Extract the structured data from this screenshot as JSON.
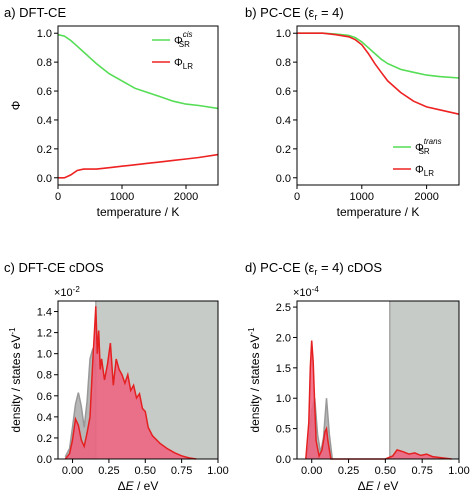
{
  "chart_data": [
    {
      "id": "a",
      "type": "line",
      "panel_label": "a)",
      "title": "DFT-CE",
      "xlabel": "temperature / K",
      "ylabel": "Φ",
      "xlim": [
        0,
        2500
      ],
      "ylim": [
        -0.05,
        1.05
      ],
      "xticks": [
        "0",
        "1000",
        "2000"
      ],
      "yticks": [
        "0.0",
        "0.2",
        "0.4",
        "0.6",
        "0.8",
        "1.0"
      ],
      "legend_position": "top-right",
      "series": [
        {
          "name": "Φ_SR^cis",
          "legend_main": "Φ",
          "legend_sub": "SR",
          "legend_sup": "cis",
          "color": "#55dd55",
          "x": [
            0,
            100,
            200,
            300,
            400,
            500,
            600,
            800,
            1000,
            1200,
            1400,
            1600,
            1800,
            2000,
            2200,
            2500
          ],
          "y": [
            0.99,
            0.98,
            0.95,
            0.91,
            0.87,
            0.83,
            0.79,
            0.72,
            0.67,
            0.62,
            0.59,
            0.56,
            0.53,
            0.51,
            0.5,
            0.48
          ]
        },
        {
          "name": "Φ_LR",
          "legend_main": "Φ",
          "legend_sub": "LR",
          "legend_sup": "",
          "color": "#ee2222",
          "x": [
            0,
            100,
            200,
            300,
            400,
            500,
            600,
            800,
            1000,
            1200,
            1400,
            1600,
            1800,
            2000,
            2200,
            2500
          ],
          "y": [
            0.0,
            0.0,
            0.02,
            0.05,
            0.06,
            0.06,
            0.06,
            0.07,
            0.08,
            0.09,
            0.1,
            0.11,
            0.12,
            0.13,
            0.14,
            0.16
          ]
        }
      ]
    },
    {
      "id": "b",
      "type": "line",
      "panel_label": "b)",
      "title": "PC-CE  (ε",
      "title_sub": "r",
      "title_tail": " = 4)",
      "xlabel": "temperature / K",
      "ylabel": "",
      "xlim": [
        0,
        2500
      ],
      "ylim": [
        -0.05,
        1.05
      ],
      "xticks": [
        "0",
        "1000",
        "2000"
      ],
      "yticks": [
        "0.0",
        "0.2",
        "0.4",
        "0.6",
        "0.8",
        "1.0"
      ],
      "legend_position": "bottom-right",
      "series": [
        {
          "name": "Φ_SR^trans",
          "legend_main": "Φ",
          "legend_sub": "SR",
          "legend_sup": "trans",
          "color": "#55dd55",
          "x": [
            0,
            200,
            400,
            600,
            800,
            900,
            1000,
            1100,
            1200,
            1300,
            1400,
            1600,
            1800,
            2000,
            2200,
            2500
          ],
          "y": [
            1.0,
            1.0,
            1.0,
            0.995,
            0.985,
            0.97,
            0.94,
            0.9,
            0.86,
            0.82,
            0.79,
            0.75,
            0.73,
            0.71,
            0.7,
            0.69
          ]
        },
        {
          "name": "Φ_LR",
          "legend_main": "Φ",
          "legend_sub": "LR",
          "legend_sup": "",
          "color": "#ee2222",
          "x": [
            0,
            200,
            400,
            600,
            800,
            900,
            1000,
            1100,
            1200,
            1300,
            1400,
            1600,
            1800,
            2000,
            2200,
            2500
          ],
          "y": [
            1.0,
            1.0,
            1.0,
            0.99,
            0.975,
            0.955,
            0.92,
            0.86,
            0.79,
            0.73,
            0.67,
            0.59,
            0.53,
            0.49,
            0.47,
            0.44
          ]
        }
      ]
    },
    {
      "id": "c",
      "type": "area",
      "panel_label": "c)",
      "title": "DFT-CE cDOS",
      "xlabel": "ΔE / eV",
      "xlabel_italic": "E",
      "ylabel": "density / states eV",
      "ylabel_sup": "-1",
      "y_multiplier": "×10",
      "y_multiplier_exp": "-2",
      "xlim": [
        -0.1,
        1.0
      ],
      "ylim": [
        0,
        1.5
      ],
      "xticks": [
        "0.00",
        "0.25",
        "0.50",
        "0.75",
        "1.00"
      ],
      "yticks": [
        "0.0",
        "0.2",
        "0.4",
        "0.6",
        "0.8",
        "1.0",
        "1.2",
        "1.4"
      ],
      "shaded_region_start": 0.16,
      "shaded_color": "#c7cbc7",
      "series": [
        {
          "name": "",
          "color": "#999999",
          "fill": "#aaaaaa",
          "x": [
            -0.05,
            -0.02,
            0.0,
            0.02,
            0.04,
            0.06,
            0.08,
            0.1,
            0.12,
            0.14,
            0.16
          ],
          "y": [
            0.02,
            0.1,
            0.3,
            0.52,
            0.63,
            0.5,
            0.3,
            0.55,
            0.95,
            1.05,
            0.8
          ]
        },
        {
          "name": "",
          "color": "#e52020",
          "fill": "#f0607f",
          "x": [
            -0.05,
            -0.02,
            0.0,
            0.02,
            0.04,
            0.06,
            0.08,
            0.1,
            0.12,
            0.14,
            0.15,
            0.16,
            0.17,
            0.18,
            0.19,
            0.2,
            0.22,
            0.24,
            0.26,
            0.28,
            0.3,
            0.32,
            0.34,
            0.36,
            0.38,
            0.4,
            0.42,
            0.44,
            0.46,
            0.48,
            0.5,
            0.52,
            0.55,
            0.6,
            0.65,
            0.7,
            0.75,
            0.8,
            0.85
          ],
          "y": [
            0.0,
            0.05,
            0.18,
            0.38,
            0.32,
            0.18,
            0.12,
            0.25,
            0.4,
            0.95,
            1.2,
            1.45,
            1.0,
            1.22,
            0.85,
            0.95,
            0.75,
            0.9,
            1.1,
            0.7,
            0.95,
            0.85,
            0.8,
            0.72,
            0.8,
            0.65,
            0.7,
            0.58,
            0.62,
            0.48,
            0.45,
            0.3,
            0.22,
            0.15,
            0.1,
            0.06,
            0.03,
            0.01,
            0.0
          ]
        }
      ]
    },
    {
      "id": "d",
      "type": "area",
      "panel_label": "d)",
      "title": "PC-CE  (ε",
      "title_sub": "r",
      "title_tail": " = 4) cDOS",
      "xlabel": "ΔE / eV",
      "xlabel_italic": "E",
      "ylabel": "density / states eV",
      "ylabel_sup": "-1",
      "y_multiplier": "×10",
      "y_multiplier_exp": "-4",
      "xlim": [
        -0.1,
        1.0
      ],
      "ylim": [
        0,
        2.6
      ],
      "xticks": [
        "0.00",
        "0.25",
        "0.50",
        "0.75",
        "1.00"
      ],
      "yticks": [
        "0.0",
        "0.5",
        "1.0",
        "1.5",
        "2.0",
        "2.5"
      ],
      "shaded_region_start": 0.53,
      "shaded_color": "#c7cbc7",
      "series": [
        {
          "name": "",
          "color": "#999999",
          "fill": "#aaaaaa",
          "x": [
            -0.04,
            -0.02,
            0.0,
            0.02,
            0.04,
            0.06,
            0.08,
            0.1,
            0.12,
            0.14
          ],
          "y": [
            0.0,
            0.2,
            0.8,
            1.0,
            0.4,
            0.1,
            0.35,
            1.0,
            0.4,
            0.0
          ]
        },
        {
          "name": "",
          "color": "#e52020",
          "fill": "#f0607f",
          "x": [
            -0.04,
            -0.02,
            -0.01,
            0.0,
            0.01,
            0.02,
            0.03,
            0.05,
            0.07,
            0.09,
            0.1,
            0.11,
            0.13,
            0.5,
            0.55,
            0.58,
            0.62,
            0.66,
            0.7,
            0.74,
            0.78,
            0.82,
            0.88,
            0.95
          ],
          "y": [
            0.0,
            0.6,
            1.5,
            1.95,
            1.6,
            0.9,
            0.3,
            0.05,
            0.15,
            0.45,
            0.5,
            0.3,
            0.0,
            0.0,
            0.05,
            0.15,
            0.12,
            0.08,
            0.1,
            0.06,
            0.08,
            0.04,
            0.02,
            0.0
          ]
        }
      ]
    }
  ]
}
